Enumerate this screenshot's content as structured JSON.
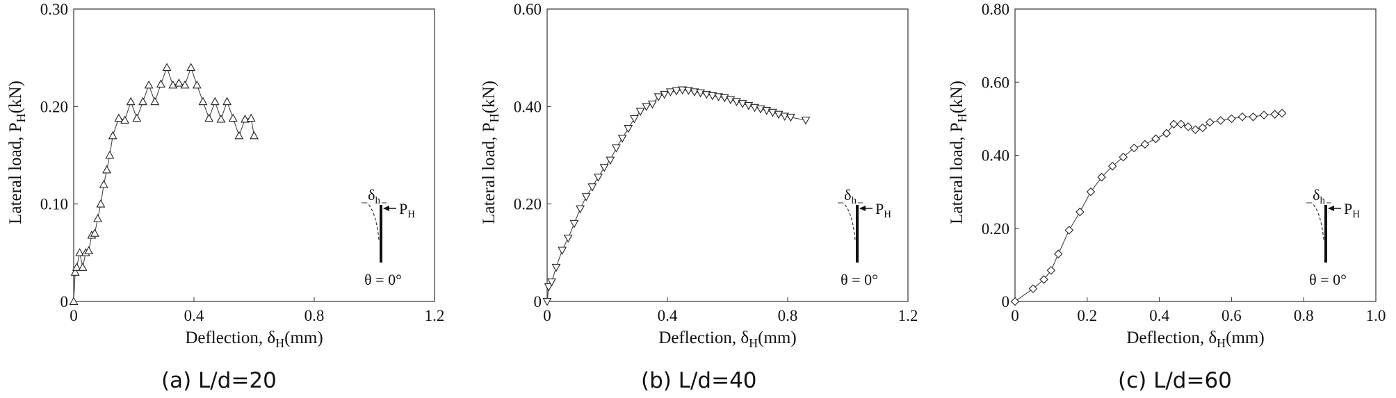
{
  "chart_data": [
    {
      "type": "line",
      "caption": "(a) L/d=20",
      "xlabel": "Deflection, δH(mm)",
      "xlabel_main": "Deflection, δ",
      "xlabel_sub": "H",
      "xlabel_unit": "(mm)",
      "ylabel": "Lateral load, PH(kN)",
      "ylabel_main": "Lateral load, P",
      "ylabel_sub": "H",
      "ylabel_unit": "(kN)",
      "xlim": [
        0,
        1.2
      ],
      "ylim": [
        0,
        0.3
      ],
      "xticks": [
        0,
        0.4,
        0.8,
        1.2
      ],
      "xtick_labels": [
        "0",
        "0.4",
        "0.8",
        "1.2"
      ],
      "yticks": [
        0,
        0.1,
        0.2,
        0.3
      ],
      "ytick_labels": [
        "0",
        "0.10",
        "0.20",
        "0.30"
      ],
      "marker": "triangle-up",
      "inset": {
        "delta": "δ",
        "delta_sub": "h",
        "force": "P",
        "force_sub": "H",
        "angle": "θ = 0°"
      },
      "series": [
        {
          "name": "L/d=20",
          "x": [
            0,
            0.005,
            0.01,
            0.02,
            0.03,
            0.04,
            0.05,
            0.06,
            0.07,
            0.08,
            0.09,
            0.1,
            0.11,
            0.12,
            0.13,
            0.15,
            0.17,
            0.19,
            0.21,
            0.23,
            0.25,
            0.27,
            0.29,
            0.31,
            0.33,
            0.35,
            0.37,
            0.39,
            0.41,
            0.43,
            0.45,
            0.47,
            0.49,
            0.51,
            0.53,
            0.55,
            0.57,
            0.59,
            0.6
          ],
          "y": [
            0,
            0.03,
            0.035,
            0.05,
            0.035,
            0.05,
            0.052,
            0.068,
            0.07,
            0.085,
            0.1,
            0.12,
            0.135,
            0.15,
            0.17,
            0.188,
            0.186,
            0.205,
            0.188,
            0.205,
            0.222,
            0.205,
            0.223,
            0.24,
            0.222,
            0.224,
            0.222,
            0.24,
            0.222,
            0.205,
            0.188,
            0.205,
            0.187,
            0.205,
            0.188,
            0.17,
            0.187,
            0.188,
            0.17
          ]
        }
      ]
    },
    {
      "type": "line",
      "caption": "(b) L/d=40",
      "xlabel": "Deflection, δH(mm)",
      "xlabel_main": "Deflection, δ",
      "xlabel_sub": "H",
      "xlabel_unit": "(mm)",
      "ylabel": "Lateral load, PH(kN)",
      "ylabel_main": "Lateral load, P",
      "ylabel_sub": "H",
      "ylabel_unit": "(kN)",
      "xlim": [
        0,
        1.2
      ],
      "ylim": [
        0,
        0.6
      ],
      "xticks": [
        0,
        0.4,
        0.8,
        1.2
      ],
      "xtick_labels": [
        "0",
        "0.4",
        "0.8",
        "1.2"
      ],
      "yticks": [
        0,
        0.2,
        0.4,
        0.6
      ],
      "ytick_labels": [
        "0",
        "0.20",
        "0.40",
        "0.60"
      ],
      "marker": "triangle-down",
      "inset": {
        "delta": "δ",
        "delta_sub": "h",
        "force": "P",
        "force_sub": "H",
        "angle": "θ = 0°"
      },
      "series": [
        {
          "name": "L/d=40",
          "x": [
            0,
            0.005,
            0.015,
            0.03,
            0.05,
            0.07,
            0.09,
            0.11,
            0.13,
            0.15,
            0.17,
            0.19,
            0.21,
            0.23,
            0.25,
            0.27,
            0.29,
            0.31,
            0.33,
            0.35,
            0.37,
            0.39,
            0.41,
            0.43,
            0.45,
            0.47,
            0.49,
            0.51,
            0.53,
            0.55,
            0.57,
            0.59,
            0.61,
            0.63,
            0.65,
            0.67,
            0.69,
            0.71,
            0.73,
            0.75,
            0.77,
            0.79,
            0.81,
            0.86
          ],
          "y": [
            0,
            0.03,
            0.04,
            0.07,
            0.105,
            0.13,
            0.16,
            0.19,
            0.215,
            0.235,
            0.255,
            0.275,
            0.29,
            0.315,
            0.335,
            0.355,
            0.375,
            0.39,
            0.4,
            0.405,
            0.42,
            0.425,
            0.43,
            0.432,
            0.434,
            0.433,
            0.43,
            0.428,
            0.425,
            0.422,
            0.42,
            0.418,
            0.414,
            0.41,
            0.406,
            0.402,
            0.398,
            0.395,
            0.392,
            0.388,
            0.384,
            0.38,
            0.378,
            0.372
          ]
        }
      ]
    },
    {
      "type": "line",
      "caption": "(c) L/d=60",
      "xlabel": "Deflection, δH(mm)",
      "xlabel_main": "Deflection, δ",
      "xlabel_sub": "H",
      "xlabel_unit": "(mm)",
      "ylabel": "Lateral load, PH(kN)",
      "ylabel_main": "Lateral load, P",
      "ylabel_sub": "H",
      "ylabel_unit": "(kN)",
      "xlim": [
        0,
        1.0
      ],
      "ylim": [
        0,
        0.8
      ],
      "xticks": [
        0,
        0.2,
        0.4,
        0.6,
        0.8,
        1.0
      ],
      "xtick_labels": [
        "0",
        "0.2",
        "0.4",
        "0.6",
        "0.8",
        "1.0"
      ],
      "yticks": [
        0,
        0.2,
        0.4,
        0.6,
        0.8
      ],
      "ytick_labels": [
        "0",
        "0.20",
        "0.40",
        "0.60",
        "0.80"
      ],
      "marker": "diamond",
      "inset": {
        "delta": "δ",
        "delta_sub": "h",
        "force": "P",
        "force_sub": "H",
        "angle": "θ = 0°"
      },
      "series": [
        {
          "name": "L/d=60",
          "x": [
            0,
            0.05,
            0.08,
            0.1,
            0.12,
            0.15,
            0.18,
            0.21,
            0.24,
            0.27,
            0.3,
            0.33,
            0.36,
            0.39,
            0.42,
            0.44,
            0.46,
            0.48,
            0.5,
            0.52,
            0.54,
            0.57,
            0.6,
            0.63,
            0.66,
            0.69,
            0.72,
            0.74
          ],
          "y": [
            0,
            0.035,
            0.06,
            0.085,
            0.13,
            0.195,
            0.245,
            0.3,
            0.34,
            0.37,
            0.395,
            0.42,
            0.43,
            0.445,
            0.46,
            0.485,
            0.485,
            0.478,
            0.47,
            0.475,
            0.49,
            0.495,
            0.5,
            0.505,
            0.505,
            0.51,
            0.512,
            0.515
          ]
        }
      ]
    }
  ]
}
